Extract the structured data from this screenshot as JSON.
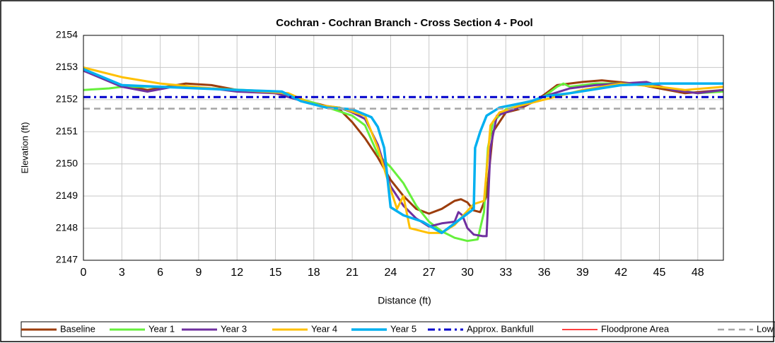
{
  "chart_data": {
    "type": "line",
    "title": "Cochran - Cochran Branch - Cross Section 4 - Pool",
    "x_label": "Distance (ft)",
    "y_label": "Elevation (ft)",
    "xlim": [
      0,
      50
    ],
    "ylim": [
      2147,
      2154
    ],
    "xticks": [
      0,
      3,
      6,
      9,
      12,
      15,
      18,
      21,
      24,
      27,
      30,
      33,
      36,
      39,
      42,
      45,
      48
    ],
    "yticks": [
      2147,
      2148,
      2149,
      2150,
      2151,
      2152,
      2153,
      2154
    ],
    "grid": true,
    "legend": "bottom",
    "series": [
      {
        "name": "Baseline",
        "color": "#9c3d0c",
        "width": 3,
        "dash": "solid",
        "x": [
          0,
          3,
          5,
          8,
          10,
          12,
          15,
          18,
          20,
          21,
          22,
          23,
          24,
          25,
          26,
          27,
          28,
          29,
          29.5,
          30,
          30.5,
          31,
          31.5,
          32,
          33,
          34,
          35,
          36,
          37,
          39,
          40.5,
          43,
          45,
          47,
          50
        ],
        "values": [
          2152.9,
          2152.45,
          2152.3,
          2152.5,
          2152.45,
          2152.3,
          2152.2,
          2151.9,
          2151.7,
          2151.3,
          2150.8,
          2150.2,
          2149.5,
          2149.0,
          2148.6,
          2148.45,
          2148.6,
          2148.85,
          2148.9,
          2148.8,
          2148.55,
          2148.5,
          2149.0,
          2151.0,
          2151.6,
          2151.7,
          2151.9,
          2152.15,
          2152.45,
          2152.55,
          2152.6,
          2152.5,
          2152.35,
          2152.2,
          2152.3
        ]
      },
      {
        "name": "Year 1",
        "color": "#66f03c",
        "width": 3,
        "dash": "solid",
        "x": [
          0,
          2,
          3,
          6,
          10,
          15,
          18,
          21,
          22,
          23,
          24,
          25,
          26,
          27,
          28,
          29,
          30,
          30.8,
          31.3,
          31.6,
          32,
          33,
          35,
          36,
          37,
          37.5,
          38,
          40,
          42,
          45,
          48,
          50
        ],
        "values": [
          2152.3,
          2152.35,
          2152.4,
          2152.4,
          2152.35,
          2152.25,
          2151.9,
          2151.5,
          2151.2,
          2150.3,
          2149.9,
          2149.4,
          2148.7,
          2148.2,
          2147.9,
          2147.7,
          2147.6,
          2147.65,
          2148.5,
          2150.5,
          2151.3,
          2151.7,
          2151.9,
          2152.1,
          2152.4,
          2152.5,
          2152.4,
          2152.5,
          2152.5,
          2152.4,
          2152.2,
          2152.25
        ]
      },
      {
        "name": "Year 3",
        "color": "#7030a0",
        "width": 3,
        "dash": "solid",
        "x": [
          0,
          3,
          5,
          7,
          10,
          12,
          15,
          18,
          20,
          21,
          22,
          23,
          24,
          25,
          26,
          27,
          28,
          29,
          29.3,
          29.6,
          30,
          30.5,
          31.2,
          31.5,
          31.8,
          32.3,
          33,
          35,
          36,
          38,
          40,
          42,
          44,
          46,
          48,
          50
        ],
        "values": [
          2152.9,
          2152.4,
          2152.25,
          2152.4,
          2152.35,
          2152.25,
          2152.2,
          2151.85,
          2151.75,
          2151.6,
          2151.4,
          2150.6,
          2149.3,
          2148.7,
          2148.3,
          2148.05,
          2148.15,
          2148.2,
          2148.5,
          2148.4,
          2148.0,
          2147.8,
          2147.75,
          2147.75,
          2150.5,
          2151.5,
          2151.6,
          2151.9,
          2152.1,
          2152.35,
          2152.45,
          2152.5,
          2152.55,
          2152.3,
          2152.2,
          2152.3
        ]
      },
      {
        "name": "Year 4",
        "color": "#ffc000",
        "width": 3,
        "dash": "solid",
        "x": [
          0,
          3,
          6,
          10,
          14,
          16,
          18,
          20,
          22,
          23,
          24,
          24.5,
          25,
          25.5,
          27,
          28,
          29,
          30.5,
          31.3,
          31.8,
          32.5,
          34,
          36,
          39,
          42,
          45,
          47,
          50
        ],
        "values": [
          2153.0,
          2152.7,
          2152.5,
          2152.35,
          2152.25,
          2152.2,
          2151.85,
          2151.75,
          2151.5,
          2150.5,
          2149.2,
          2148.6,
          2149.0,
          2148.0,
          2147.85,
          2147.85,
          2148.1,
          2148.75,
          2148.85,
          2151.2,
          2151.6,
          2151.8,
          2152.0,
          2152.3,
          2152.5,
          2152.4,
          2152.3,
          2152.4
        ]
      },
      {
        "name": "Year 5",
        "color": "#00b0f0",
        "width": 3.5,
        "dash": "solid",
        "x": [
          0,
          3,
          6,
          9,
          12,
          15.5,
          17,
          19,
          21,
          22.5,
          23,
          23.5,
          24,
          25,
          26.5,
          28,
          29,
          30.5,
          30.6,
          31,
          31.5,
          32.5,
          35,
          36,
          38,
          42,
          45,
          50
        ],
        "values": [
          2152.95,
          2152.45,
          2152.4,
          2152.35,
          2152.3,
          2152.25,
          2151.95,
          2151.75,
          2151.7,
          2151.45,
          2151.15,
          2150.5,
          2148.65,
          2148.4,
          2148.2,
          2147.85,
          2148.15,
          2148.6,
          2150.5,
          2151.0,
          2151.5,
          2151.75,
          2151.95,
          2152.1,
          2152.2,
          2152.45,
          2152.5,
          2152.5
        ]
      },
      {
        "name": "Approx. Bankfull",
        "color": "#0000cc",
        "width": 3,
        "dash": "dash-dot",
        "x": [
          0,
          50
        ],
        "values": [
          2152.08,
          2152.08
        ]
      },
      {
        "name": "Floodprone Area",
        "color": "#ff0000",
        "width": 1.5,
        "dash": "solid",
        "x": [],
        "values": []
      },
      {
        "name": "Low TOB",
        "color": "#a6a6a6",
        "width": 2.5,
        "dash": "dash",
        "x": [
          0,
          50
        ],
        "values": [
          2151.72,
          2151.72
        ]
      }
    ]
  }
}
